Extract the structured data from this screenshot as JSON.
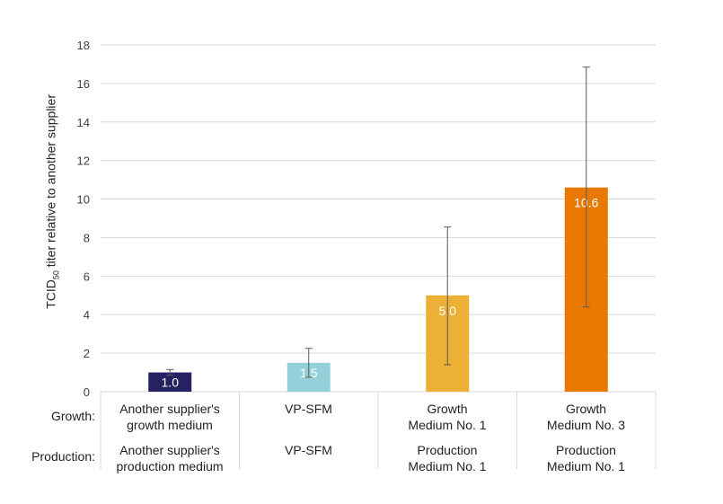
{
  "chart_data": {
    "type": "bar",
    "ylabel_main": "TCID",
    "ylabel_sub": "50",
    "ylabel_rest": " titer relative to another supplier",
    "ylim": [
      0,
      18
    ],
    "yticks": [
      0,
      2,
      4,
      6,
      8,
      10,
      12,
      14,
      16,
      18
    ],
    "grid": true,
    "row_labels": {
      "growth": "Growth:",
      "production": "Production:"
    },
    "categories": [
      {
        "growth": [
          "Another supplier's",
          "growth medium"
        ],
        "production": [
          "Another supplier's",
          "production medium"
        ]
      },
      {
        "growth": [
          "VP-SFM"
        ],
        "production": [
          "VP-SFM"
        ]
      },
      {
        "growth": [
          "Growth",
          "Medium No. 1"
        ],
        "production": [
          "Production",
          "Medium No. 1"
        ]
      },
      {
        "growth": [
          "Growth",
          "Medium No. 3"
        ],
        "production": [
          "Production",
          "Medium No. 1"
        ]
      }
    ],
    "values": [
      1.0,
      1.5,
      5.0,
      10.6
    ],
    "data_labels": [
      "1.0",
      "1.5",
      "5.0",
      "10.6"
    ],
    "error_low": [
      0.85,
      0.75,
      1.4,
      4.4
    ],
    "error_high": [
      1.15,
      2.25,
      8.55,
      16.85
    ],
    "colors": [
      "#262262",
      "#94d0da",
      "#ebb035",
      "#e87800"
    ]
  }
}
